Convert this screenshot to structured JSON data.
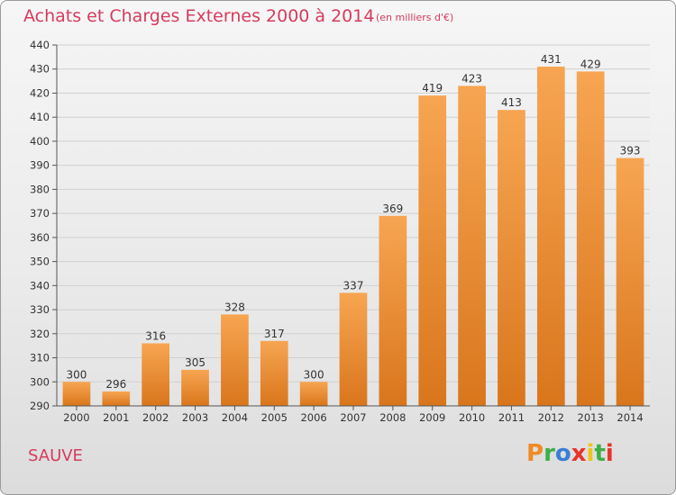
{
  "header": {
    "title": "Achats et Charges Externes 2000 à 2014",
    "unit": "(en milliers d'€)"
  },
  "footer": {
    "commune": "SAUVE",
    "logo": "Proxiti"
  },
  "colors": {
    "title": "#d63b5c",
    "bar_top": "#f7a552",
    "bar_bottom": "#d9761c",
    "logo_letters": [
      "#f08a24",
      "#3fae49",
      "#3a7fd5",
      "#e5352c",
      "#f0c419",
      "#3fae49",
      "#e5352c"
    ]
  },
  "chart_data": {
    "type": "bar",
    "categories": [
      "2000",
      "2001",
      "2002",
      "2003",
      "2004",
      "2005",
      "2006",
      "2007",
      "2008",
      "2009",
      "2010",
      "2011",
      "2012",
      "2013",
      "2014"
    ],
    "values": [
      300,
      296,
      316,
      305,
      328,
      317,
      300,
      337,
      369,
      419,
      423,
      413,
      431,
      429,
      393
    ],
    "ylim": [
      290,
      440
    ],
    "yticks": [
      290,
      300,
      310,
      320,
      330,
      340,
      350,
      360,
      370,
      380,
      390,
      400,
      410,
      420,
      430,
      440
    ],
    "grid": true,
    "data_labels": true
  }
}
